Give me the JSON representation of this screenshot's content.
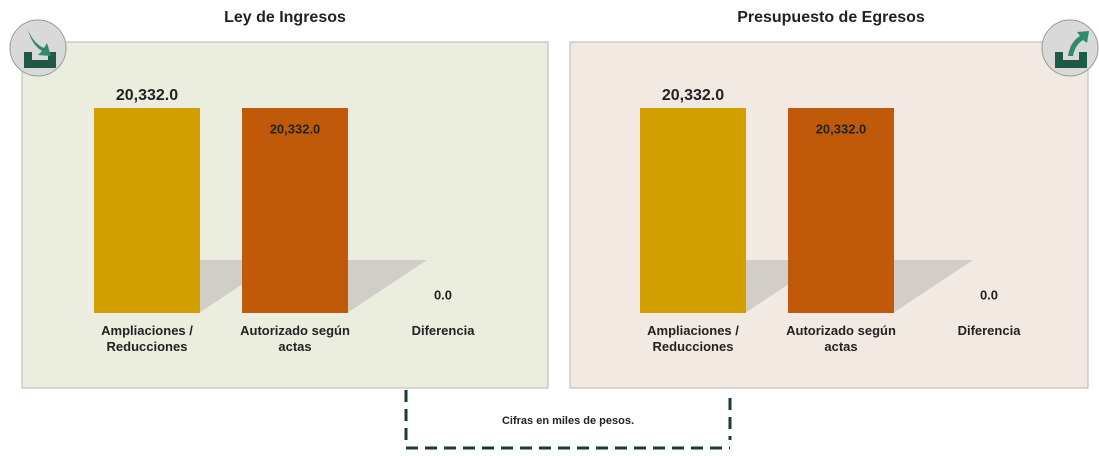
{
  "chart_data": [
    {
      "type": "bar",
      "title": "Ley de Ingresos",
      "categories": [
        "Ampliaciones / Reducciones",
        "Autorizado según actas",
        "Diferencia"
      ],
      "values": [
        20332,
        20332,
        0
      ],
      "value_labels": [
        "20,332.0",
        "20,332.0",
        "0.0"
      ],
      "colors": [
        "#d29f00",
        "#c05a0a",
        null
      ]
    },
    {
      "type": "bar",
      "title": "Presupuesto de Egresos",
      "categories": [
        "Ampliaciones / Reducciones",
        "Autorizado según actas",
        "Diferencia"
      ],
      "values": [
        20332,
        20332,
        0
      ],
      "value_labels": [
        "20,332.0",
        "20,332.0",
        "0.0"
      ],
      "colors": [
        "#d29f00",
        "#c05a0a",
        null
      ]
    }
  ],
  "footnote": "Cifras en miles de pesos."
}
